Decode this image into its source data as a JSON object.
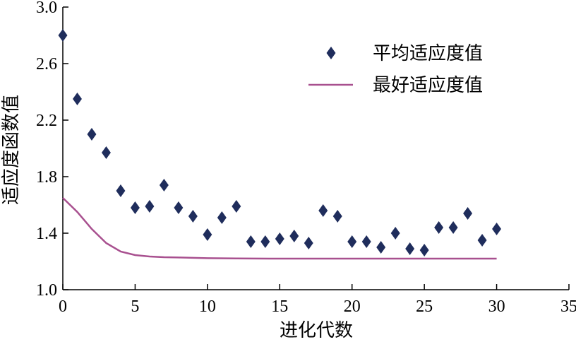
{
  "chart_data": {
    "type": "scatter",
    "xlabel": "进化代数",
    "ylabel": "适应度函数值",
    "xlim": [
      0,
      35
    ],
    "ylim": [
      1.0,
      3.0
    ],
    "xticks": [
      "0",
      "5",
      "10",
      "15",
      "20",
      "25",
      "30",
      "35"
    ],
    "yticks": [
      "1.0",
      "1.4",
      "1.8",
      "2.2",
      "2.6",
      "3.0"
    ],
    "grid": false,
    "legend_position": "top-right",
    "series": [
      {
        "name": "平均适应度值",
        "type": "scatter",
        "marker": "diamond",
        "color": "#1f2d5c",
        "x": [
          0,
          1,
          2,
          3,
          4,
          5,
          6,
          7,
          8,
          9,
          10,
          11,
          12,
          13,
          14,
          15,
          16,
          17,
          18,
          19,
          20,
          21,
          22,
          23,
          24,
          25,
          26,
          27,
          28,
          29,
          30
        ],
        "y": [
          2.8,
          2.35,
          2.1,
          1.97,
          1.7,
          1.58,
          1.59,
          1.74,
          1.58,
          1.52,
          1.39,
          1.51,
          1.59,
          1.34,
          1.34,
          1.36,
          1.38,
          1.33,
          1.56,
          1.52,
          1.34,
          1.34,
          1.3,
          1.4,
          1.29,
          1.28,
          1.44,
          1.44,
          1.54,
          1.35,
          1.43
        ]
      },
      {
        "name": "最好适应度值",
        "type": "line",
        "color": "#a8508f",
        "x": [
          0,
          1,
          2,
          3,
          4,
          5,
          6,
          7,
          8,
          10,
          12,
          15,
          20,
          25,
          30
        ],
        "y": [
          1.65,
          1.55,
          1.43,
          1.33,
          1.27,
          1.245,
          1.235,
          1.23,
          1.228,
          1.223,
          1.221,
          1.22,
          1.22,
          1.22,
          1.22
        ]
      }
    ]
  }
}
